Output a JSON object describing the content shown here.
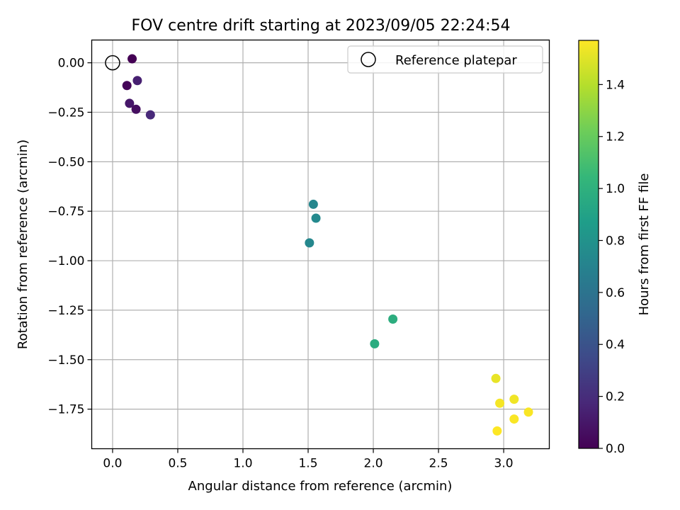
{
  "chart_data": {
    "type": "scatter",
    "title": "FOV centre drift starting at 2023/09/05 22:24:54",
    "xlabel": "Angular distance from reference (arcmin)",
    "ylabel": "Rotation from reference (arcmin)",
    "xlim": [
      -0.16,
      3.35
    ],
    "ylim": [
      -1.95,
      0.115
    ],
    "xticks": [
      0.0,
      0.5,
      1.0,
      1.5,
      2.0,
      2.5,
      3.0
    ],
    "xtick_labels": [
      "0.0",
      "0.5",
      "1.0",
      "1.5",
      "2.0",
      "2.5",
      "3.0"
    ],
    "yticks": [
      0.0,
      -0.25,
      -0.5,
      -0.75,
      -1.0,
      -1.25,
      -1.5,
      -1.75
    ],
    "ytick_labels": [
      "0.00",
      "−0.25",
      "−0.50",
      "−0.75",
      "−1.00",
      "−1.25",
      "−1.50",
      "−1.75"
    ],
    "grid": true,
    "legend": {
      "position": "top-right",
      "entries": [
        "Reference platepar"
      ]
    },
    "reference_point": {
      "x": 0.0,
      "y": 0.0,
      "label": "Reference platepar"
    },
    "colorbar": {
      "label": "Hours from first FF file",
      "min": 0.0,
      "max": 1.57,
      "ticks": [
        0.0,
        0.2,
        0.4,
        0.6,
        0.8,
        1.0,
        1.2,
        1.4
      ],
      "tick_labels": [
        "0.0",
        "0.2",
        "0.4",
        "0.6",
        "0.8",
        "1.0",
        "1.2",
        "1.4"
      ],
      "colormap": "viridis"
    },
    "points": [
      {
        "x": 0.15,
        "y": 0.02,
        "hours": 0.0
      },
      {
        "x": 0.11,
        "y": -0.115,
        "hours": 0.02
      },
      {
        "x": 0.19,
        "y": -0.09,
        "hours": 0.14
      },
      {
        "x": 0.13,
        "y": -0.205,
        "hours": 0.1
      },
      {
        "x": 0.18,
        "y": -0.235,
        "hours": 0.06
      },
      {
        "x": 0.29,
        "y": -0.263,
        "hours": 0.18
      },
      {
        "x": 1.54,
        "y": -0.715,
        "hours": 0.72
      },
      {
        "x": 1.56,
        "y": -0.785,
        "hours": 0.74
      },
      {
        "x": 1.51,
        "y": -0.91,
        "hours": 0.73
      },
      {
        "x": 2.15,
        "y": -1.295,
        "hours": 0.98
      },
      {
        "x": 2.01,
        "y": -1.42,
        "hours": 0.97
      },
      {
        "x": 2.94,
        "y": -1.595,
        "hours": 1.52
      },
      {
        "x": 3.08,
        "y": -1.7,
        "hours": 1.54
      },
      {
        "x": 2.97,
        "y": -1.72,
        "hours": 1.55
      },
      {
        "x": 3.19,
        "y": -1.765,
        "hours": 1.56
      },
      {
        "x": 3.08,
        "y": -1.8,
        "hours": 1.56
      },
      {
        "x": 2.95,
        "y": -1.86,
        "hours": 1.57
      }
    ]
  }
}
